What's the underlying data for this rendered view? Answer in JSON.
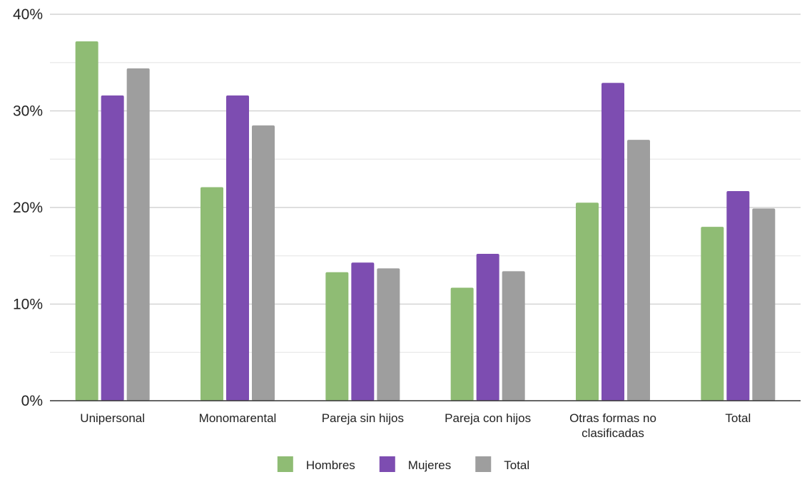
{
  "chart_data": {
    "type": "bar",
    "categories": [
      "Unipersonal",
      "Monomarental",
      "Pareja sin hijos",
      "Pareja con hijos",
      "Otras formas no clasificadas",
      "Total"
    ],
    "category_lines": [
      [
        "Unipersonal"
      ],
      [
        "Monomarental"
      ],
      [
        "Pareja sin hijos"
      ],
      [
        "Pareja con hijos"
      ],
      [
        "Otras formas no",
        "clasificadas"
      ],
      [
        "Total"
      ]
    ],
    "series": [
      {
        "name": "Hombres",
        "color": "#8fbc74",
        "values": [
          37.2,
          22.1,
          13.3,
          11.7,
          20.5,
          18.0
        ]
      },
      {
        "name": "Mujeres",
        "color": "#7d4db1",
        "values": [
          31.6,
          31.6,
          14.3,
          15.2,
          32.9,
          21.7
        ]
      },
      {
        "name": "Total",
        "color": "#9e9e9e",
        "values": [
          34.4,
          28.5,
          13.7,
          13.4,
          27.0,
          19.9
        ]
      }
    ],
    "ylim": [
      0,
      40
    ],
    "yticks": [
      0,
      10,
      20,
      30,
      40
    ],
    "ytick_labels": [
      "0%",
      "10%",
      "20%",
      "30%",
      "40%"
    ],
    "minor_gridlines": true,
    "legend_position": "bottom",
    "title": "",
    "xlabel": "",
    "ylabel": ""
  }
}
